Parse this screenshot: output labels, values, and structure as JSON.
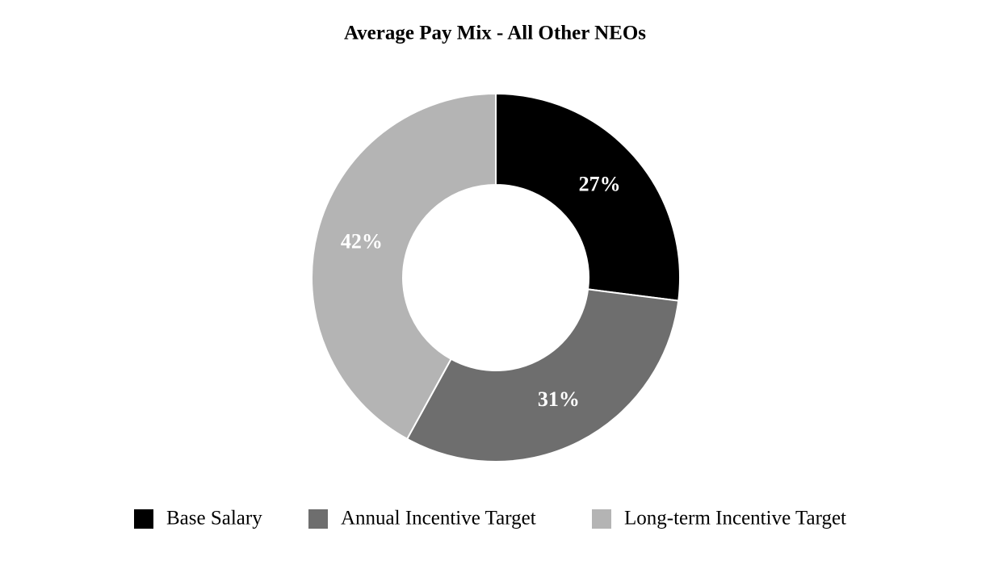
{
  "chart_data": {
    "type": "pie",
    "title": "Average Pay Mix - All Other NEOs",
    "categories": [
      "Base Salary",
      "Annual Incentive Target",
      "Long-term Incentive Target"
    ],
    "values": [
      27,
      31,
      42
    ],
    "value_labels": [
      "27%",
      "31%",
      "42%"
    ],
    "colors": [
      "#000000",
      "#6e6e6e",
      "#b4b4b4"
    ],
    "donut": true,
    "legend": "bottom"
  }
}
